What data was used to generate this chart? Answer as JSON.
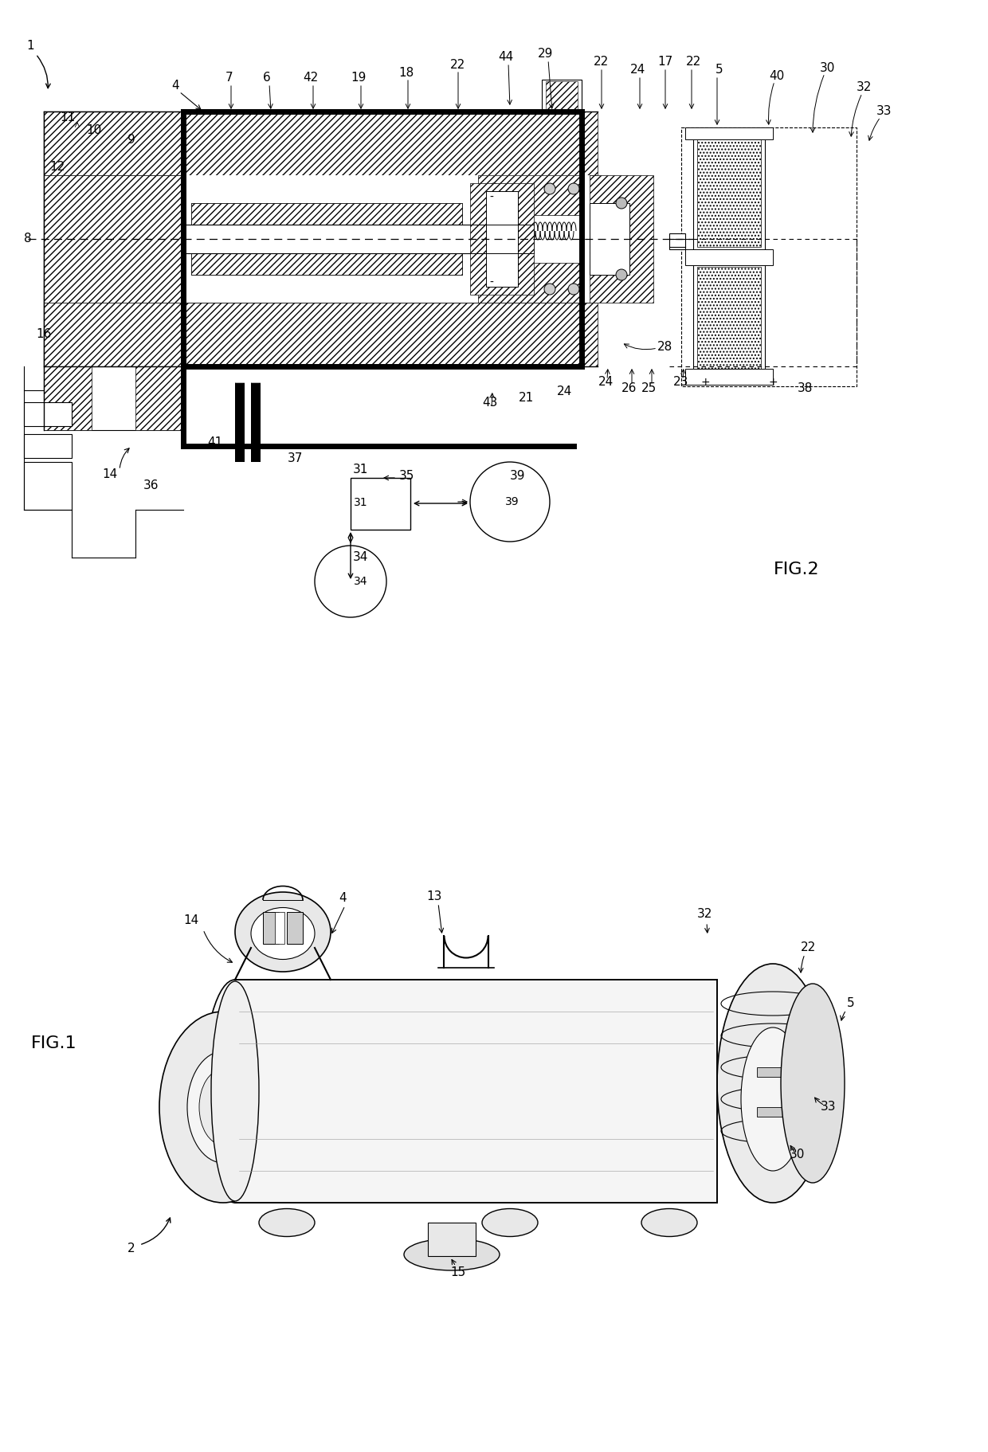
{
  "fig_width": 12.4,
  "fig_height": 18.23,
  "dpi": 100,
  "bg_color": "#ffffff",
  "lc": "#000000",
  "fig2_label": "FIG.2",
  "fig1_label": "FIG.1",
  "label_fs": 11,
  "fig_label_fs": 16
}
